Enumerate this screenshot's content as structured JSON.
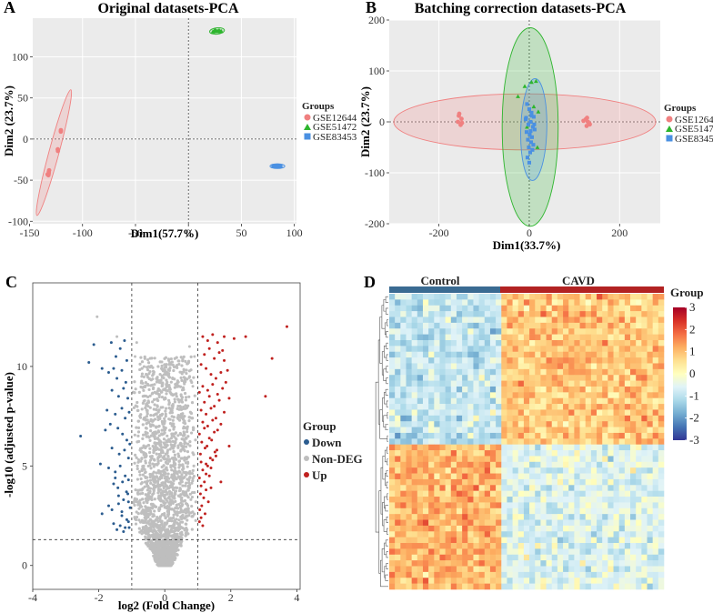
{
  "figure": {
    "panel_labels": [
      "A",
      "B",
      "C",
      "D"
    ]
  },
  "colors": {
    "gse12644": "#F08080",
    "gse51472": "#2DB52D",
    "gse83453": "#4A90E2",
    "down": "#2B5C8F",
    "nondeg": "#BEBEBE",
    "up": "#C0211F",
    "control": "#3A6B92",
    "cavd": "#B22222",
    "panel_bg": "#EBEBEB"
  },
  "chart_data": [
    {
      "type": "scatter",
      "title": "Original datasets-PCA",
      "xlabel": "Dim1(57.7%)",
      "ylabel": "Dim2 (23.7%)",
      "xlim": [
        -147,
        102
      ],
      "ylim": [
        -103,
        147
      ],
      "xticks": [
        -150,
        -100,
        -50,
        0,
        50,
        100
      ],
      "yticks": [
        -100,
        -50,
        0,
        50,
        100
      ],
      "legend_title": "Groups",
      "legend": [
        "GSE12644",
        "GSE51472",
        "GSE83453"
      ],
      "series": [
        {
          "name": "GSE12644",
          "marker": "circle",
          "color_key": "gse12644",
          "x": [
            -120.5,
            -120.4,
            -123.4,
            -123.2,
            -131.8,
            -131.9,
            -132.2,
            -133,
            -131.5
          ],
          "y": [
            9,
            10.8,
            -12.5,
            -14.5,
            -40,
            -42,
            -44,
            -43,
            -38
          ],
          "ellipse": {
            "center": [
              -127,
              -17
            ],
            "p1": [
              -143,
              -93
            ],
            "p2": [
              -111,
              60
            ],
            "width": 5
          }
        },
        {
          "name": "GSE51472",
          "marker": "triangle",
          "color_key": "gse51472",
          "x": [
            24,
            26,
            28,
            30,
            25,
            27,
            29,
            31,
            23
          ],
          "y": [
            131,
            132,
            131.5,
            130.8,
            133,
            131,
            132.5,
            131.2,
            130.5
          ],
          "ellipse": {
            "center": [
              27,
              131.5
            ],
            "p1": [
              20,
              130.5
            ],
            "p2": [
              34,
              132.5
            ],
            "width": 3.2
          }
        },
        {
          "name": "GSE83453",
          "marker": "square",
          "color_key": "gse83453",
          "x": [
            80,
            82,
            84,
            86,
            81,
            83,
            85,
            87
          ],
          "y": [
            -33,
            -33.5,
            -32.8,
            -33.2,
            -32.5,
            -33.8,
            -33,
            -32.9
          ],
          "ellipse": {
            "center": [
              84,
              -33
            ],
            "p1": [
              77,
              -33
            ],
            "p2": [
              91,
              -33
            ],
            "width": 2.4
          }
        }
      ]
    },
    {
      "type": "scatter",
      "title": "Batching correction datasets-PCA",
      "xlabel": "Dim1(33.7%)",
      "ylabel": "Dim2 (23.7%)",
      "xlim": [
        -310,
        290
      ],
      "ylim": [
        -200,
        200
      ],
      "xticks": [
        -200,
        0,
        200
      ],
      "yticks": [
        -200,
        -100,
        0,
        100,
        200
      ],
      "legend_title": "Groups",
      "legend": [
        "GSE12644",
        "GSE51472",
        "GSE83453"
      ],
      "series": [
        {
          "name": "GSE12644",
          "marker": "circle",
          "color_key": "gse12644",
          "x": [
            -155,
            -150,
            -158,
            -152,
            -156,
            -149,
            125,
            130,
            134,
            128,
            120,
            133,
            127
          ],
          "y": [
            16,
            6,
            0,
            -6,
            12,
            -2,
            5,
            0,
            -5,
            8,
            2,
            -3,
            -8
          ],
          "ellipse": {
            "center": [
              -10,
              0
            ],
            "p1": [
              -300,
              0
            ],
            "p2": [
              280,
              0
            ],
            "width": 28
          }
        },
        {
          "name": "GSE51472",
          "marker": "triangle",
          "color_key": "gse51472",
          "x": [
            -25,
            5,
            15,
            10,
            -5,
            20,
            18,
            -10
          ],
          "y": [
            50,
            78,
            80,
            30,
            -10,
            20,
            -50,
            70
          ],
          "ellipse": {
            "center": [
              2,
              -10
            ],
            "p1": [
              2,
              185
            ],
            "p2": [
              2,
              -205
            ],
            "width": 28
          }
        },
        {
          "name": "GSE83453",
          "marker": "square",
          "color_key": "gse83453",
          "x": [
            -5,
            0,
            5,
            10,
            -8,
            3,
            -2,
            8,
            12,
            -6,
            1,
            6,
            -3,
            4,
            9,
            -1,
            7,
            2,
            -4,
            0,
            11,
            -7,
            5,
            3
          ],
          "y": [
            35,
            25,
            18,
            10,
            5,
            0,
            -5,
            -10,
            -15,
            -20,
            -25,
            -30,
            -35,
            -40,
            -45,
            -50,
            -55,
            -60,
            -70,
            -80,
            -5,
            8,
            12,
            -18
          ],
          "ellipse": {
            "center": [
              10,
              -10
            ],
            "p1": [
              13,
              85
            ],
            "p2": [
              7,
              -115
            ],
            "width": 13
          }
        }
      ]
    },
    {
      "type": "scatter",
      "title": "",
      "xlabel": "log2 (Fold Change)",
      "ylabel": "-log10 (adjusted p-value)",
      "xlim": [
        -4,
        4.1
      ],
      "ylim": [
        -1.2,
        14.2
      ],
      "xticks": [
        -4,
        -2,
        0,
        2,
        4
      ],
      "yticks": [
        0,
        5,
        10
      ],
      "thresholds": {
        "x": [
          -1,
          1
        ],
        "y": 1.3
      },
      "legend_title": "Group",
      "legend": [
        "Down",
        "Non-DEG",
        "Up"
      ],
      "series": [
        {
          "name": "Down",
          "color_key": "down",
          "x": [
            -2.15,
            -1.62,
            -1.48,
            -1.35,
            -1.22,
            -1.15,
            -2.3,
            -1.9,
            -1.7,
            -1.55,
            -1.45,
            -1.3,
            -1.18,
            -1.6,
            -1.4,
            -1.25,
            -1.12,
            -1.75,
            -1.5,
            -1.3,
            -1.2,
            -1.08,
            -2.55,
            -1.8,
            -1.65,
            -1.42,
            -1.28,
            -1.15,
            -1.06,
            -1.6,
            -1.38,
            -1.22,
            -1.1,
            -1.95,
            -1.7,
            -1.5,
            -1.35,
            -1.2,
            -1.1,
            -1.55,
            -1.42,
            -1.28,
            -1.16,
            -1.4,
            -1.25,
            -1.12,
            -1.9,
            -1.6,
            -1.3,
            -1.15,
            -1.05,
            -1.55,
            -1.35,
            -1.2,
            -1.1,
            -1.45,
            -1.25,
            -1.08,
            -1.7,
            -1.4,
            -1.3,
            -1.1,
            -1.5
          ],
          "y": [
            11.1,
            11.2,
            10.5,
            10.9,
            11.3,
            10.3,
            10.2,
            9.9,
            9.7,
            9.9,
            9.4,
            9.8,
            9.2,
            8.8,
            8.5,
            8.9,
            8.4,
            7.8,
            7.6,
            7.9,
            7.4,
            7.7,
            6.5,
            6.8,
            7.1,
            6.9,
            6.6,
            6.3,
            6.1,
            5.9,
            5.6,
            5.8,
            5.4,
            5.1,
            4.9,
            4.7,
            5.0,
            4.5,
            4.3,
            4.1,
            3.9,
            4.2,
            3.7,
            3.5,
            3.3,
            3.6,
            2.6,
            2.8,
            2.5,
            2.3,
            2.9,
            2.1,
            2.0,
            1.9,
            2.2,
            1.8,
            1.7,
            1.9,
            3.0,
            3.1,
            2.7,
            3.2,
            4.4
          ]
        },
        {
          "name": "Up",
          "color_key": "up",
          "x": [
            1.15,
            1.3,
            1.45,
            1.6,
            1.75,
            1.2,
            1.35,
            1.5,
            1.65,
            1.8,
            1.9,
            1.1,
            1.25,
            1.4,
            1.55,
            1.7,
            1.85,
            1.15,
            1.3,
            1.45,
            1.6,
            1.75,
            1.95,
            1.05,
            1.2,
            1.35,
            1.5,
            1.65,
            1.1,
            1.25,
            1.4,
            1.55,
            1.8,
            1.15,
            1.3,
            1.45,
            1.6,
            1.7,
            1.05,
            1.2,
            1.35,
            1.5,
            1.12,
            1.28,
            1.42,
            1.58,
            1.08,
            1.22,
            1.38,
            1.52,
            1.1,
            1.3,
            1.45,
            1.15,
            1.25,
            1.4,
            1.05,
            1.2,
            1.35,
            1.1,
            1.25,
            1.08,
            1.18,
            1.32,
            1.12,
            1.06,
            1.22,
            1.1,
            1.05,
            1.15,
            1.8,
            2.1,
            2.45,
            3.05,
            3.25,
            3.7,
            1.95,
            1.55,
            1.7,
            1.4,
            1.25
          ],
          "y": [
            11.5,
            11.3,
            11.6,
            11.2,
            10.8,
            10.6,
            10.9,
            10.4,
            10.7,
            10.3,
            9.8,
            10.1,
            9.9,
            9.6,
            9.4,
            9.7,
            9.2,
            9.0,
            8.8,
            9.1,
            8.6,
            8.9,
            8.4,
            8.7,
            8.2,
            8.5,
            8.0,
            8.3,
            7.8,
            7.6,
            7.9,
            7.4,
            7.7,
            7.2,
            7.0,
            7.3,
            6.8,
            7.1,
            6.6,
            6.9,
            6.4,
            6.7,
            6.2,
            6.0,
            6.3,
            5.8,
            5.6,
            5.9,
            5.4,
            5.7,
            5.2,
            5.0,
            5.3,
            4.8,
            4.6,
            4.9,
            4.4,
            4.2,
            4.5,
            4.0,
            3.8,
            3.6,
            3.4,
            3.2,
            3.0,
            2.8,
            2.6,
            2.4,
            2.2,
            2.0,
            11.5,
            11.4,
            11.5,
            8.5,
            10.4,
            12.0,
            6.0,
            5.5,
            4.2,
            3.9,
            5.1
          ]
        },
        {
          "name": "Non-DEG",
          "color_key": "nondeg",
          "x": [
            -2.05,
            -1.45,
            -0.85,
            -0.9,
            -0.7,
            -0.5,
            -0.3,
            0.3,
            0.6,
            0.85,
            0.9,
            0.75,
            0.5,
            -0.6
          ],
          "y": [
            12.5,
            11.5,
            11.2,
            10.5,
            9.5,
            8.0,
            6.5,
            6.0,
            7.5,
            9.0,
            10.5,
            11.0,
            8.5,
            9.0
          ],
          "cloud": "volcano-shaped mass of non-significant genes centred at 0"
        }
      ]
    },
    {
      "type": "heatmap",
      "title": "",
      "column_groups": [
        {
          "name": "Control",
          "columns": 20,
          "color_key": "control"
        },
        {
          "name": "CAVD",
          "columns": 29,
          "color_key": "cavd"
        }
      ],
      "rows": 51,
      "row_blocks": [
        {
          "name": "up-in-CAVD",
          "rows": 26,
          "control_level": -0.9,
          "cavd_level": 0.9
        },
        {
          "name": "down-in-CAVD",
          "rows": 25,
          "control_level": 1.1,
          "cavd_level": -0.6
        }
      ],
      "value_range": [
        -3,
        3
      ],
      "colorbar_ticks": [
        3,
        2,
        1,
        0,
        -1,
        -2,
        -3
      ],
      "legend_title": "Group",
      "colormap": [
        "#313695",
        "#4575B4",
        "#74ADD1",
        "#ABD9E9",
        "#E0F3F8",
        "#FFFFBF",
        "#FEE090",
        "#FDAE61",
        "#F46D43",
        "#D73027",
        "#A50026"
      ]
    }
  ]
}
